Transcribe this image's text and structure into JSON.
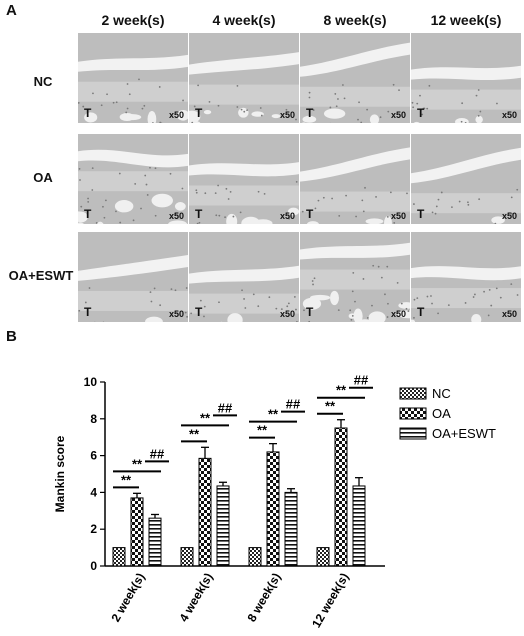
{
  "panel_a": {
    "letter": "A",
    "columns": [
      "2 week(s)",
      "4 week(s)",
      "8 week(s)",
      "12 week(s)"
    ],
    "rows": [
      "NC",
      "OA",
      "OA+ESWT"
    ],
    "tissue_label": "T",
    "magnification": "x50"
  },
  "panel_b": {
    "letter": "B"
  },
  "chart_data": {
    "type": "bar",
    "categories": [
      "2 week(s)",
      "4 week(s)",
      "8 week(s)",
      "12 week(s)"
    ],
    "series": [
      {
        "name": "NC",
        "values": [
          1.0,
          1.0,
          1.0,
          1.0
        ],
        "errors": [
          0,
          0,
          0,
          0
        ]
      },
      {
        "name": "OA",
        "values": [
          3.7,
          5.85,
          6.2,
          7.5
        ],
        "errors": [
          0.25,
          0.6,
          0.45,
          0.45
        ]
      },
      {
        "name": "OA+ESWT",
        "values": [
          2.6,
          4.35,
          4.0,
          4.35
        ],
        "errors": [
          0.2,
          0.2,
          0.2,
          0.45
        ]
      }
    ],
    "ylabel": "Mankin score",
    "xlabel": "",
    "ylim": [
      0,
      10
    ],
    "yticks": [
      0,
      2,
      4,
      6,
      8,
      10
    ],
    "legend_position": "right",
    "significance": {
      "oa_vs_nc": "**",
      "eswt_vs_nc": "**",
      "eswt_vs_oa": "##"
    }
  }
}
